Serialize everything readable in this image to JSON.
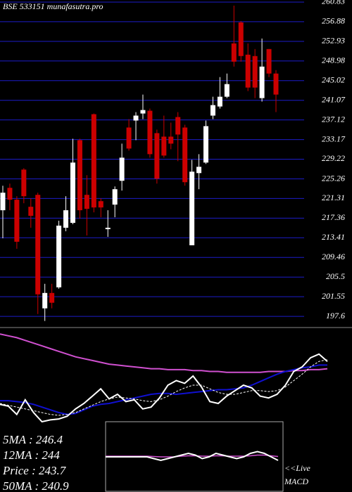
{
  "chart_data": {
    "type": "candlestick",
    "title": "BSE 533151 munafasutra.pro",
    "ylim": [
      196.2,
      261.25
    ],
    "yticks": [
      260.83,
      256.88,
      252.93,
      248.98,
      245.02,
      241.07,
      237.12,
      233.17,
      229.22,
      225.26,
      221.31,
      217.36,
      213.41,
      209.46,
      205.5,
      201.55,
      197.6
    ],
    "grid": true,
    "grid_color": "#1c1cc8",
    "up_color": "#ffffff",
    "down_color": "#cc0000",
    "open": [
      218.95,
      223.46,
      221.07,
      227.13,
      219.65,
      222.05,
      199.21,
      202.31,
      203.44,
      215.43,
      216.41,
      233.05,
      222.05,
      238.27,
      220.78,
      215.14,
      220.08,
      224.87,
      235.59,
      237.0,
      238.41,
      238.97,
      234.46,
      233.76,
      233.76,
      237.7,
      235.59,
      211.9,
      226.42,
      228.54,
      237.99,
      239.82,
      241.79,
      252.51,
      256.74,
      250.25,
      249.97,
      241.51,
      251.38,
      246.45
    ],
    "high": [
      223.89,
      224.31,
      221.77,
      227.41,
      221.35,
      222.48,
      204.15,
      204.15,
      216.84,
      221.77,
      233.33,
      233.33,
      226.0,
      238.41,
      221.35,
      218.95,
      223.74,
      232.35,
      237.28,
      238.69,
      242.22,
      239.4,
      235.17,
      237.99,
      236.58,
      238.69,
      236.15,
      229.1,
      230.23,
      237.0,
      241.79,
      245.74,
      246.45,
      260.12,
      257.02,
      252.51,
      251.38,
      253.5,
      251.38,
      247.15
    ],
    "low": [
      213.31,
      218.95,
      211.2,
      220.36,
      215.43,
      198.08,
      196.67,
      199.21,
      203.16,
      214.72,
      216.13,
      217.26,
      213.87,
      218.53,
      217.54,
      213.59,
      217.54,
      222.9,
      230.94,
      233.05,
      237.28,
      229.53,
      224.31,
      229.53,
      231.22,
      228.82,
      223.89,
      211.9,
      223.18,
      228.26,
      237.28,
      239.4,
      241.51,
      247.85,
      248.84,
      242.92,
      241.51,
      240.81,
      245.74,
      238.69
    ],
    "close": [
      222.48,
      221.07,
      212.61,
      221.77,
      217.82,
      202.03,
      202.31,
      200.34,
      215.85,
      218.95,
      228.54,
      218.95,
      219.23,
      219.51,
      219.51,
      215.43,
      223.18,
      229.53,
      231.36,
      237.99,
      239.11,
      230.23,
      225.3,
      229.95,
      232.35,
      234.18,
      224.59,
      226.71,
      227.69,
      235.87,
      240.1,
      241.79,
      244.33,
      248.84,
      249.97,
      243.63,
      243.63,
      247.85,
      246.45,
      242.22
    ],
    "lower_ylim": [
      0,
      100
    ],
    "lower_series": [
      {
        "color": "#d050d0",
        "values": [
          96,
          94,
          92,
          89,
          86,
          83,
          80,
          77,
          74,
          71,
          69,
          67,
          65,
          63,
          62,
          61,
          60,
          59,
          58,
          58,
          57,
          57,
          57,
          56,
          56,
          55,
          55,
          54,
          54,
          54,
          54,
          54,
          55,
          55,
          55,
          56,
          56,
          57,
          57,
          58
        ]
      },
      {
        "color": "#1010d0",
        "values": [
          23,
          23,
          22,
          21,
          19,
          16,
          13,
          10,
          8,
          9,
          13,
          17,
          19,
          20,
          22,
          24,
          26,
          28,
          30,
          31,
          31,
          30,
          31,
          32,
          33,
          34,
          35,
          35,
          36,
          37,
          40,
          44,
          48,
          52,
          55,
          57,
          59,
          60,
          62,
          62
        ]
      },
      {
        "color": "#ffffff",
        "dash": true,
        "values": [
          20,
          18,
          16,
          14,
          12,
          10,
          8,
          7,
          8,
          10,
          14,
          18,
          22,
          25,
          27,
          26,
          25,
          23,
          22,
          24,
          28,
          33,
          37,
          40,
          40,
          36,
          32,
          30,
          30,
          32,
          34,
          34,
          33,
          34,
          38,
          45,
          52,
          60,
          66,
          68
        ]
      },
      {
        "color": "#ffffff",
        "values": [
          19,
          17,
          8,
          24,
          10,
          0,
          2,
          3,
          6,
          14,
          20,
          28,
          36,
          25,
          30,
          22,
          24,
          14,
          16,
          26,
          40,
          45,
          42,
          50,
          38,
          22,
          20,
          28,
          34,
          40,
          37,
          28,
          26,
          30,
          40,
          55,
          60,
          70,
          74,
          66
        ]
      }
    ],
    "stats": [
      "5MA : 246.4",
      "12MA : 244",
      "Price  : 243.7",
      "50MA : 240.9"
    ],
    "macd_ylim": [
      -1,
      1
    ],
    "macd": {
      "color": "#ffffff",
      "values": [
        0,
        0,
        0,
        0,
        0,
        0,
        0,
        -0.05,
        -0.1,
        -0.05,
        0,
        0.05,
        0.1,
        0.05,
        -0.05,
        0,
        0.1,
        0.05,
        0,
        -0.05,
        0,
        0.1,
        0.15,
        0.1,
        0,
        -0.1
      ]
    },
    "macd_signal": {
      "color": "#d050d0",
      "values": [
        0.02,
        0.02,
        0.02,
        0.02,
        0.02,
        0.02,
        0.02,
        0.01,
        0,
        0,
        0,
        0.02,
        0.03,
        0.03,
        0.02,
        0.02,
        0.03,
        0.03,
        0.02,
        0.02,
        0.02,
        0.03,
        0.05,
        0.05,
        0.03,
        0.01
      ]
    },
    "macd_label": [
      "<<Live",
      "MACD"
    ]
  }
}
